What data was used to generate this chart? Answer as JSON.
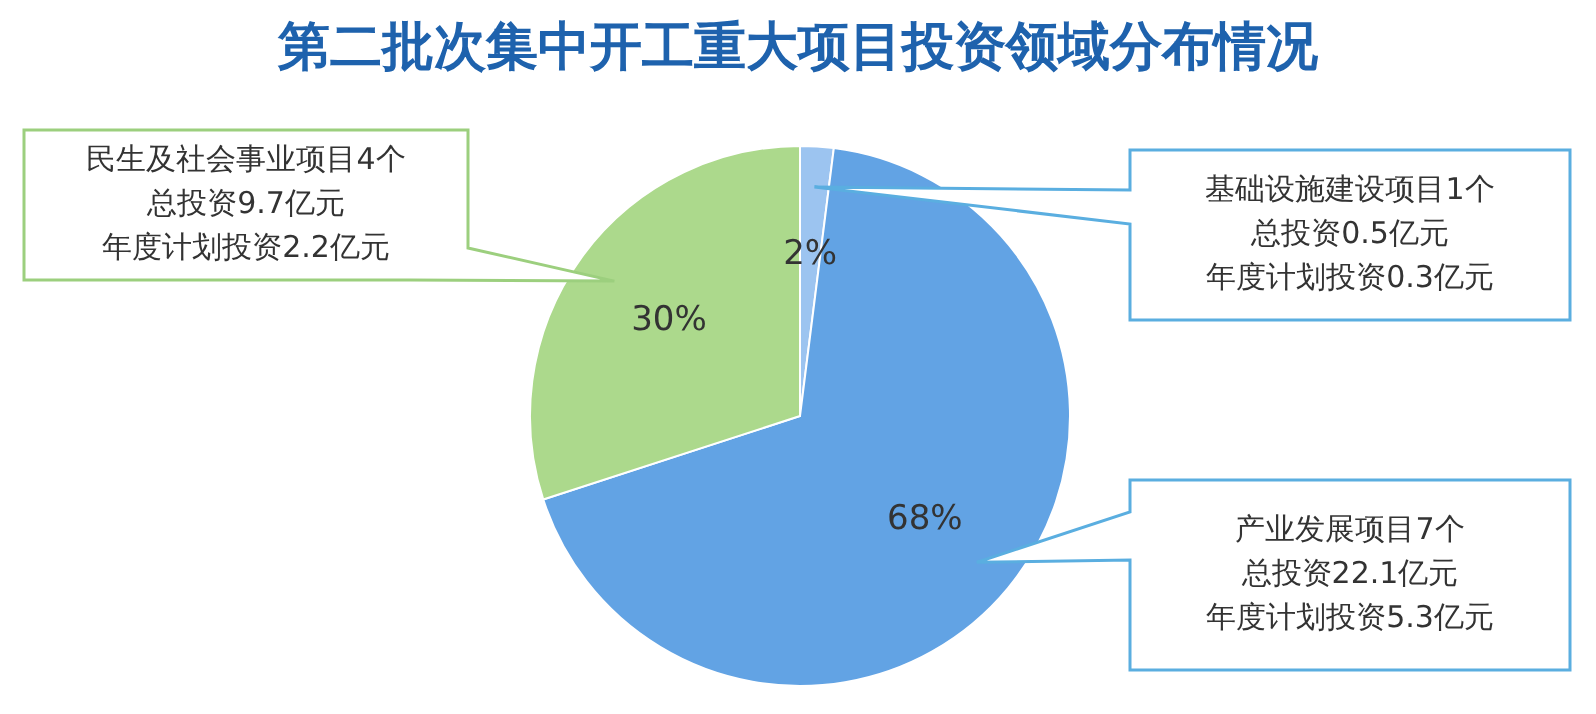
{
  "chart_data": {
    "type": "pie",
    "title": "第二批次集中开工重大项目投资领域分布情况",
    "categories": [
      null,
      null,
      null
    ],
    "values": [
      2,
      68,
      30
    ],
    "value_labels": [
      "2%",
      "68%",
      "30%"
    ],
    "colors": [
      "#9cc4f0",
      "#62a3e4",
      "#acd98c"
    ],
    "annotations": [
      "基础设施建设项目1个",
      "总投资0.5亿元",
      "年度计划投资0.3亿元",
      "产业发展项目7个",
      "总投资22.1亿元",
      "年度计划投资5.3亿元",
      "民生及社会事业项目4个",
      "总投资9.7亿元",
      "年度计划投资2.2亿元"
    ]
  }
}
